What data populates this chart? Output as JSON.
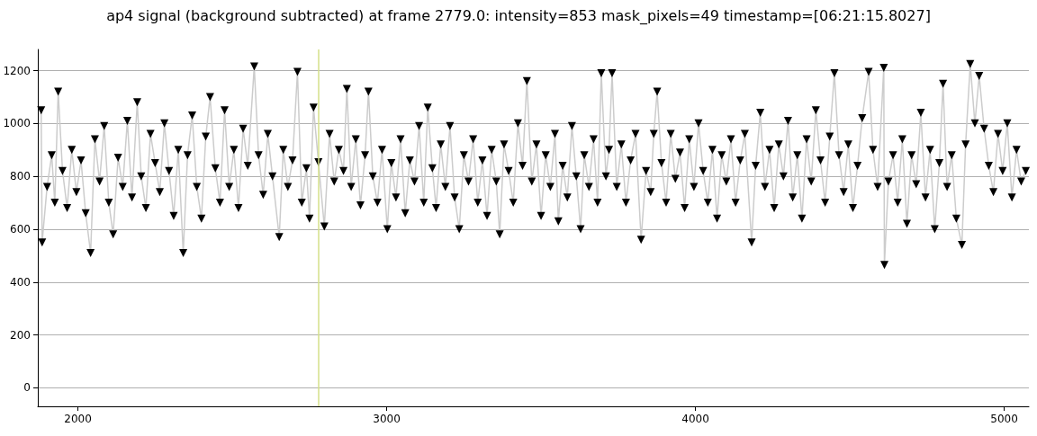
{
  "chart_data": {
    "type": "line",
    "title": "ap4 signal (background subtracted) at frame 2779.0: intensity=853 mask_pixels=49 timestamp=[06:21:15.8027]",
    "x": [
      1881,
      1884,
      1900,
      1915,
      1925,
      1936,
      1950,
      1965,
      1980,
      1995,
      2010,
      2025,
      2041,
      2055,
      2070,
      2085,
      2100,
      2114,
      2130,
      2145,
      2160,
      2175,
      2192,
      2205,
      2220,
      2235,
      2250,
      2265,
      2280,
      2295,
      2310,
      2325,
      2341,
      2355,
      2370,
      2385,
      2400,
      2414,
      2428,
      2445,
      2460,
      2475,
      2490,
      2505,
      2520,
      2535,
      2550,
      2571,
      2585,
      2600,
      2615,
      2630,
      2652,
      2665,
      2680,
      2695,
      2711,
      2725,
      2740,
      2750,
      2763,
      2779,
      2798,
      2815,
      2830,
      2845,
      2860,
      2871,
      2885,
      2900,
      2915,
      2930,
      2941,
      2955,
      2970,
      2985,
      3002,
      3015,
      3030,
      3045,
      3060,
      3075,
      3090,
      3105,
      3120,
      3133,
      3148,
      3160,
      3175,
      3190,
      3205,
      3220,
      3235,
      3250,
      3265,
      3280,
      3295,
      3310,
      3325,
      3340,
      3355,
      3366,
      3380,
      3395,
      3410,
      3425,
      3440,
      3454,
      3470,
      3485,
      3500,
      3515,
      3530,
      3545,
      3556,
      3570,
      3585,
      3600,
      3614,
      3628,
      3640,
      3655,
      3670,
      3683,
      3695,
      3710,
      3720,
      3730,
      3745,
      3760,
      3775,
      3790,
      3806,
      3824,
      3840,
      3855,
      3865,
      3876,
      3890,
      3905,
      3920,
      3935,
      3950,
      3965,
      3980,
      3995,
      4010,
      4025,
      4040,
      4055,
      4070,
      4085,
      4100,
      4115,
      4130,
      4145,
      4160,
      4182,
      4195,
      4210,
      4225,
      4240,
      4255,
      4270,
      4285,
      4300,
      4315,
      4330,
      4345,
      4360,
      4375,
      4390,
      4405,
      4420,
      4435,
      4450,
      4465,
      4480,
      4495,
      4510,
      4525,
      4540,
      4561,
      4575,
      4590,
      4610,
      4612,
      4625,
      4640,
      4655,
      4670,
      4685,
      4700,
      4715,
      4730,
      4745,
      4760,
      4775,
      4790,
      4802,
      4815,
      4830,
      4845,
      4863,
      4875,
      4890,
      4905,
      4919,
      4935,
      4950,
      4965,
      4980,
      4995,
      5010,
      5025,
      5040,
      5055,
      5070
    ],
    "values": [
      1050,
      550,
      760,
      880,
      700,
      1120,
      820,
      680,
      900,
      740,
      860,
      660,
      510,
      940,
      780,
      990,
      700,
      580,
      870,
      760,
      1010,
      720,
      1080,
      800,
      680,
      960,
      850,
      740,
      1000,
      820,
      650,
      900,
      510,
      880,
      1030,
      760,
      640,
      950,
      1100,
      830,
      700,
      1050,
      760,
      900,
      680,
      980,
      840,
      1215,
      880,
      730,
      960,
      800,
      570,
      900,
      760,
      860,
      1195,
      700,
      830,
      640,
      1060,
      853,
      610,
      960,
      780,
      900,
      820,
      1130,
      760,
      940,
      690,
      880,
      1120,
      800,
      700,
      900,
      600,
      850,
      720,
      940,
      660,
      860,
      780,
      990,
      700,
      1060,
      830,
      680,
      920,
      760,
      990,
      720,
      600,
      880,
      780,
      940,
      700,
      860,
      650,
      900,
      780,
      580,
      920,
      820,
      700,
      1000,
      840,
      1160,
      780,
      920,
      650,
      880,
      760,
      960,
      630,
      840,
      720,
      990,
      800,
      600,
      880,
      760,
      940,
      700,
      1190,
      800,
      900,
      1190,
      760,
      920,
      700,
      860,
      960,
      560,
      820,
      740,
      960,
      1120,
      850,
      700,
      960,
      790,
      890,
      680,
      940,
      760,
      1000,
      820,
      700,
      900,
      640,
      880,
      780,
      940,
      700,
      860,
      960,
      550,
      840,
      1040,
      760,
      900,
      680,
      920,
      800,
      1010,
      720,
      880,
      640,
      940,
      780,
      1050,
      860,
      700,
      950,
      1190,
      880,
      740,
      920,
      680,
      840,
      1020,
      1195,
      900,
      760,
      1210,
      465,
      780,
      880,
      700,
      940,
      620,
      880,
      770,
      1040,
      720,
      900,
      600,
      850,
      1150,
      760,
      880,
      640,
      540,
      920,
      1225,
      1000,
      1180,
      980,
      840,
      740,
      960,
      820,
      1000,
      720,
      900,
      780,
      820
    ],
    "color": "#000000",
    "marker": "triangle",
    "line_style": "solid",
    "xlim": [
      1870,
      5080
    ],
    "xticks": [
      2000,
      3000,
      4000,
      5000
    ],
    "ylim": [
      -70,
      1280
    ],
    "yticks": [
      0,
      200,
      400,
      600,
      800,
      1000,
      1200
    ],
    "grid": "y",
    "ref_lines": [
      {
        "axis": "x",
        "value": 2779,
        "color": "#d4e08a"
      }
    ]
  }
}
